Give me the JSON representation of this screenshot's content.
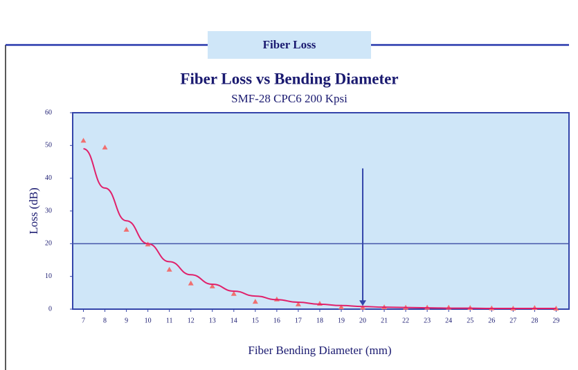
{
  "header": {
    "title": "Fiber Loss"
  },
  "chart_data": {
    "type": "scatter",
    "title": "Fiber Loss vs Bending Diameter",
    "subtitle": "SMF-28 CPC6 200 Kpsi",
    "x_label": "Fiber Bending Diameter (mm)",
    "y_label": "Loss (dB)",
    "x": [
      7,
      8,
      9,
      10,
      11,
      12,
      13,
      14,
      15,
      16,
      17,
      18,
      19,
      20,
      21,
      22,
      23,
      24,
      25,
      26,
      27,
      28,
      29
    ],
    "series": [
      {
        "color": "#f07070",
        "mode": "markers",
        "values": [
          51.5,
          49.4,
          24.3,
          19.8,
          12.1,
          7.9,
          7.0,
          4.7,
          2.3,
          3.0,
          1.5,
          1.7,
          0.6,
          0.5,
          0.6,
          0.5,
          0.5,
          0.5,
          0.4,
          0.3,
          0.2,
          0.4,
          0.2
        ]
      },
      {
        "color": "#e0206a",
        "mode": "line",
        "values": [
          49,
          37,
          27,
          20,
          14.5,
          10.5,
          7.6,
          5.5,
          4,
          2.9,
          2.1,
          1.5,
          1.1,
          0.8,
          0.6,
          0.5,
          0.4,
          0.3,
          0.3,
          0.2,
          0.2,
          0.2,
          0.2
        ]
      }
    ],
    "hline": {
      "y": 20,
      "color": "#4455aa"
    },
    "arrow": {
      "x": 20,
      "y_from": 43,
      "y_to": 1,
      "color": "#3344aa"
    },
    "xlim": [
      6.5,
      29.6
    ],
    "ylim": [
      0,
      60
    ],
    "xticks": [
      7,
      8,
      9,
      10,
      11,
      12,
      13,
      14,
      15,
      16,
      17,
      18,
      19,
      20,
      21,
      22,
      23,
      24,
      25,
      26,
      27,
      28,
      29
    ],
    "yticks": [
      0,
      10,
      20,
      30,
      40,
      50,
      60
    ],
    "plot_background": "#cfe6f8"
  }
}
